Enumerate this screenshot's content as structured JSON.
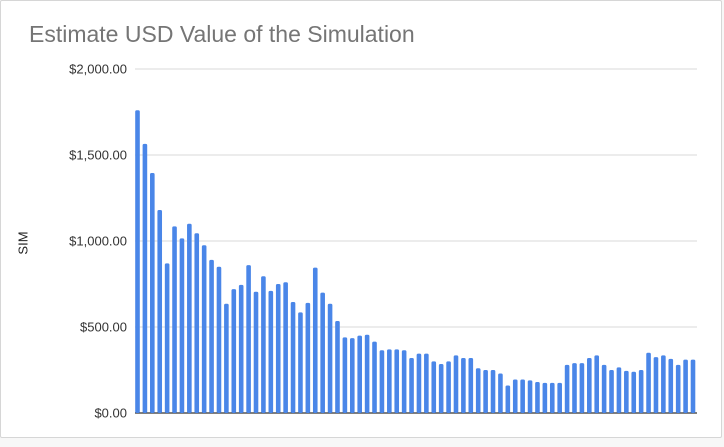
{
  "chart_data": {
    "type": "bar",
    "title": "Estimate USD Value of the Simulation",
    "xlabel": "",
    "ylabel": "SIM",
    "ylim": [
      0,
      2000
    ],
    "y_ticks": [
      "$0.00",
      "$500.00",
      "$1,000.00",
      "$1,500.00",
      "$2,000.00"
    ],
    "y_tick_values": [
      0,
      500,
      1000,
      1500,
      2000
    ],
    "grid": true,
    "legend": "none",
    "bar_color": "#4a86e8",
    "values": [
      1760,
      1565,
      1395,
      1180,
      870,
      1085,
      1015,
      1100,
      1045,
      975,
      890,
      850,
      635,
      720,
      745,
      860,
      705,
      795,
      710,
      750,
      760,
      645,
      585,
      640,
      845,
      700,
      635,
      535,
      440,
      435,
      450,
      455,
      415,
      365,
      370,
      370,
      365,
      320,
      345,
      345,
      300,
      285,
      300,
      335,
      320,
      320,
      260,
      250,
      250,
      230,
      160,
      195,
      195,
      190,
      180,
      175,
      175,
      175,
      280,
      290,
      290,
      320,
      335,
      280,
      250,
      265,
      245,
      240,
      250,
      350,
      325,
      335,
      315,
      280,
      310,
      310
    ]
  }
}
